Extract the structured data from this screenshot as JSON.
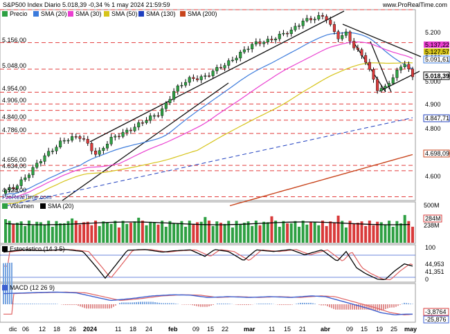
{
  "header": {
    "title": "S&P500 Index Diario 5.018,39 -0,34 % 1 may 2024 21:59:59",
    "site": "www.ProRealTime.com",
    "watermark": "ProRealTime.com"
  },
  "colors": {
    "up": "#2ea043",
    "down": "#d93a3a",
    "sma20": "#3b7bdc",
    "sma30": "#ea3fd0",
    "sma50": "#d6c41a",
    "sma130": "#1f3fbf",
    "sma200": "#c8441c",
    "stoch_k": "#000000",
    "stoch_d": "#e06060",
    "macd_line": "#3b5fd0",
    "macd_signal": "#e06060",
    "hline": "#e23b3b"
  },
  "legend": {
    "price": "Precio",
    "sma20": "SMA (20)",
    "sma30": "SMA (30)",
    "sma50": "SMA (50)",
    "sma130": "SMA (130)",
    "sma200": "SMA (200)"
  },
  "volume_legend": {
    "volume": "Volumen",
    "sma": "SMA (20)"
  },
  "stoch_legend": "Estocástico (14 3 5)",
  "macd_legend": "MACD (12 26 9)",
  "price_axis_ticks": [
    "5.200",
    "5.100",
    "5.000",
    "4.900",
    "4.800",
    "4.600"
  ],
  "price_level_labels": [
    "5.156,00",
    "5.048,00",
    "4.954,00",
    "4.906,00",
    "4.840,00",
    "4.786,00",
    "4.656,00",
    "4.634,00",
    "4.528,00"
  ],
  "price_value_badges": {
    "sma30": "5.137,22",
    "sma50": "5.127,57",
    "sma20": "5.091,61",
    "last": "5.018,39",
    "sma130": "4.847,71",
    "sma200": "4.698,09"
  },
  "volume_axis": {
    "top": "500M",
    "mid": "238M",
    "badge": "284M"
  },
  "stoch_axis": {
    "top": "100",
    "bottom": "0",
    "k_badge": "44,953",
    "d_badge": "41,351"
  },
  "macd_axis": {
    "signal_badge": "-3,8764",
    "macd_badge": "-25,876"
  },
  "x_axis_labels": [
    "dic",
    "06",
    "12",
    "18",
    "26",
    "2024",
    "11",
    "18",
    "24",
    "feb",
    "09",
    "15",
    "22",
    "mar",
    "11",
    "15",
    "21",
    "abr",
    "09",
    "15",
    "19",
    "25",
    "may"
  ],
  "chart_data": [
    {
      "type": "candlestick",
      "title": "S&P500 Index Diario",
      "ylim": [
        4480,
        5290
      ],
      "horizontal_levels": [
        5156,
        5048,
        4954,
        4906,
        4840,
        4786,
        4656,
        4634,
        4528
      ],
      "last_close": 5018.39,
      "change_pct": -0.34,
      "series": [
        {
          "name": "SMA (20)",
          "last": 5091.61
        },
        {
          "name": "SMA (30)",
          "last": 5137.22
        },
        {
          "name": "SMA (50)",
          "last": 5127.57
        },
        {
          "name": "SMA (130)",
          "last": 4847.71
        },
        {
          "name": "SMA (200)",
          "last": 4698.09
        }
      ]
    },
    {
      "type": "bar",
      "title": "Volumen",
      "ylim": [
        0,
        500
      ],
      "sma_last": 238,
      "last": 284
    },
    {
      "type": "line",
      "title": "Estocástico (14 3 5)",
      "ylim": [
        0,
        100
      ],
      "series": [
        {
          "name": "K",
          "last": 44.953
        },
        {
          "name": "D",
          "last": 41.351
        }
      ]
    },
    {
      "type": "line",
      "title": "MACD (12 26 9)",
      "series": [
        {
          "name": "MACD",
          "last": -25.876
        },
        {
          "name": "Signal",
          "last": -3.8764
        }
      ]
    }
  ]
}
